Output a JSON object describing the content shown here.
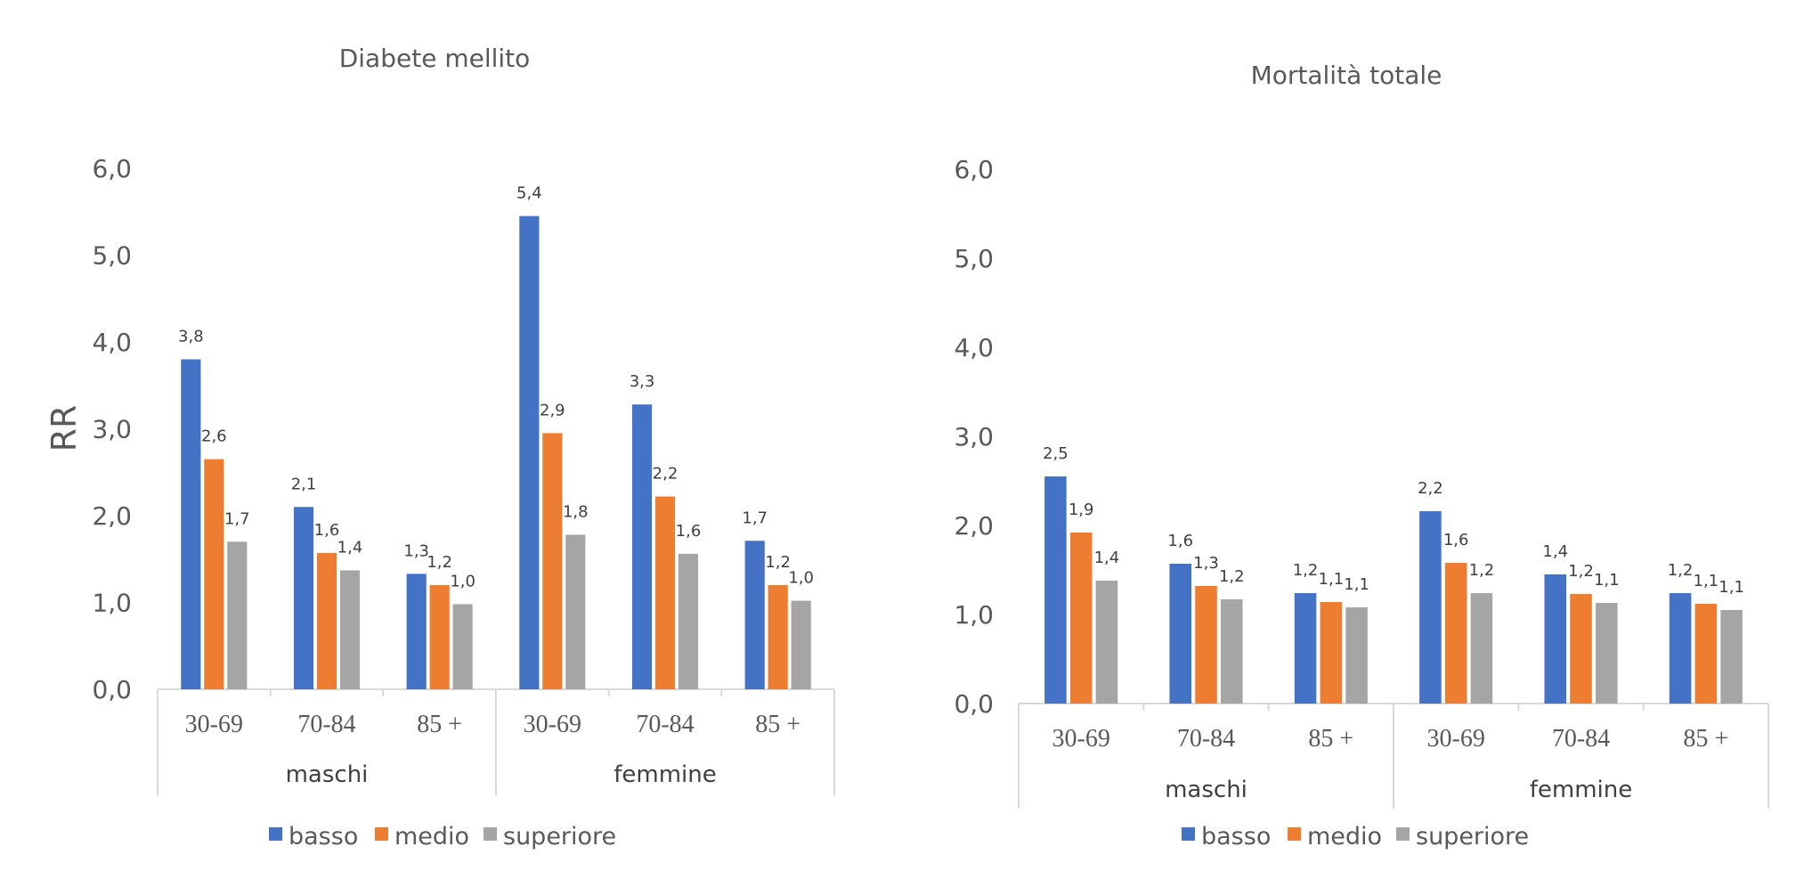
{
  "chart_data": [
    {
      "type": "bar",
      "title": "Diabete mellito",
      "ylabel": "RR",
      "xlabel": "",
      "ylim": [
        0,
        6
      ],
      "yticks": [
        "0,0",
        "1,0",
        "2,0",
        "3,0",
        "4,0",
        "5,0",
        "6,0"
      ],
      "groups": [
        "maschi",
        "femmine"
      ],
      "categories": [
        "30-69",
        "70-84",
        "85 +",
        "30-69",
        "70-84",
        "85 +"
      ],
      "series": [
        {
          "name": "basso",
          "color": "#4472c4",
          "values": [
            3.8,
            2.1,
            1.33,
            5.45,
            3.28,
            1.71
          ],
          "labels": [
            "3,8",
            "2,1",
            "1,3",
            "5,4",
            "3,3",
            "1,7"
          ]
        },
        {
          "name": "medio",
          "color": "#ed7d31",
          "values": [
            2.65,
            1.57,
            1.2,
            2.95,
            2.22,
            1.2
          ],
          "labels": [
            "2,6",
            "1,6",
            "1,2",
            "2,9",
            "2,2",
            "1,2"
          ]
        },
        {
          "name": "superiore",
          "color": "#a5a5a5",
          "values": [
            1.7,
            1.37,
            0.98,
            1.78,
            1.56,
            1.02
          ],
          "labels": [
            "1,7",
            "1,4",
            "1,0",
            "1,8",
            "1,6",
            "1,0"
          ]
        }
      ],
      "legend_position": "bottom"
    },
    {
      "type": "bar",
      "title": "Mortalità totale",
      "ylabel": "",
      "xlabel": "",
      "ylim": [
        0,
        6
      ],
      "yticks": [
        "0,0",
        "1,0",
        "2,0",
        "3,0",
        "4,0",
        "5,0",
        "6,0"
      ],
      "groups": [
        "maschi",
        "femmine"
      ],
      "categories": [
        "30-69",
        "70-84",
        "85 +",
        "30-69",
        "70-84",
        "85 +"
      ],
      "series": [
        {
          "name": "basso",
          "color": "#4472c4",
          "values": [
            2.55,
            1.57,
            1.24,
            2.16,
            1.45,
            1.24
          ],
          "labels": [
            "2,5",
            "1,6",
            "1,2",
            "2,2",
            "1,4",
            "1,2"
          ]
        },
        {
          "name": "medio",
          "color": "#ed7d31",
          "values": [
            1.92,
            1.32,
            1.14,
            1.58,
            1.23,
            1.12
          ],
          "labels": [
            "1,9",
            "1,3",
            "1,1",
            "1,6",
            "1,2",
            "1,1"
          ]
        },
        {
          "name": "superiore",
          "color": "#a5a5a5",
          "values": [
            1.38,
            1.17,
            1.08,
            1.24,
            1.13,
            1.05
          ],
          "labels": [
            "1,4",
            "1,2",
            "1,1",
            "1,2",
            "1,1",
            "1,1"
          ]
        }
      ],
      "legend_position": "bottom"
    }
  ]
}
